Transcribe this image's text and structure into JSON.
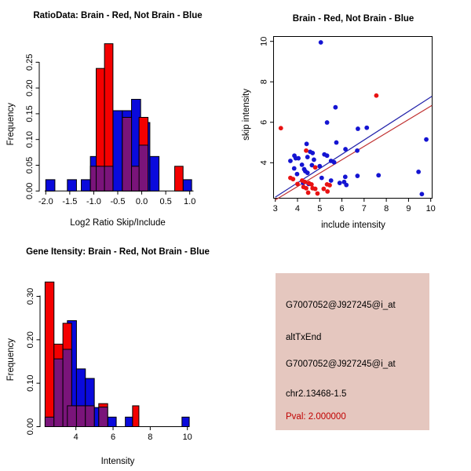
{
  "window_background": "#ffffff",
  "palette": {
    "hist_blue": "#0A0ADC",
    "hist_red": "#F40000",
    "hist_overlap": "#7A147A",
    "bar_border": "#000000",
    "point_blue": "#1414D2",
    "point_red": "#E81212",
    "line_blue": "#2222AA",
    "line_red": "#C03030",
    "axis_color": "#000000",
    "info_bg": "#E5C7BF",
    "info_text": "#000000",
    "pval_text": "#C00000"
  },
  "chart_data": [
    {
      "type": "bar",
      "variant": "overlaid-histogram",
      "title": "RatioData: Brain - Red, Not Brain - Blue",
      "xlabel": "Log2 Ratio Skip/Include",
      "ylabel": "Frequency",
      "legend_note": "Brain = red, Not Brain = blue, overlap = purple",
      "xlim": [
        -2.15,
        1.1
      ],
      "ylim": [
        0,
        0.29
      ],
      "grid": false,
      "xticks": [
        -2.0,
        -1.5,
        -1.0,
        -0.5,
        0.0,
        0.5,
        1.0
      ],
      "xtick_labels": [
        "-2.0",
        "-1.5",
        "-1.0",
        "-0.5",
        "0.0",
        "0.5",
        "1.0"
      ],
      "yticks": [
        0.0,
        0.05,
        0.1,
        0.15,
        0.2,
        0.25
      ],
      "ytick_labels": [
        "0.00",
        "0.05",
        "0.10",
        "0.15",
        "0.20",
        "0.25"
      ],
      "bars": [
        {
          "x0": -2.0,
          "x1": -1.81,
          "h": 0.022,
          "c": "blue"
        },
        {
          "x0": -1.55,
          "x1": -1.36,
          "h": 0.022,
          "c": "blue"
        },
        {
          "x0": -1.26,
          "x1": -1.07,
          "h": 0.022,
          "c": "blue"
        },
        {
          "x0": -1.07,
          "x1": -0.88,
          "h": 0.067,
          "c": "blue"
        },
        {
          "x0": -0.6,
          "x1": -0.404,
          "h": 0.156,
          "c": "blue"
        },
        {
          "x0": -0.404,
          "x1": -0.213,
          "h": 0.156,
          "c": "blue"
        },
        {
          "x0": -0.213,
          "x1": -0.023,
          "h": 0.178,
          "c": "blue"
        },
        {
          "x0": -0.023,
          "x1": 0.169,
          "h": 0.133,
          "c": "blue"
        },
        {
          "x0": 0.169,
          "x1": 0.36,
          "h": 0.067,
          "c": "blue"
        },
        {
          "x0": 0.861,
          "x1": 1.04,
          "h": 0.022,
          "c": "blue"
        },
        {
          "x0": -0.949,
          "x1": -0.776,
          "h": 0.238,
          "c": "red"
        },
        {
          "x0": -0.776,
          "x1": -0.6,
          "h": 0.286,
          "c": "red"
        },
        {
          "x0": -0.056,
          "x1": 0.131,
          "h": 0.143,
          "c": "red"
        },
        {
          "x0": 0.687,
          "x1": 0.861,
          "h": 0.048,
          "c": "red"
        },
        {
          "x0": -1.07,
          "x1": -0.88,
          "h": 0.048,
          "c": "overlap"
        },
        {
          "x0": -0.949,
          "x1": -0.776,
          "h": 0.048,
          "c": "overlap"
        },
        {
          "x0": -0.776,
          "x1": -0.6,
          "h": 0.048,
          "c": "overlap"
        },
        {
          "x0": -0.404,
          "x1": -0.213,
          "h": 0.143,
          "c": "overlap"
        },
        {
          "x0": -0.213,
          "x1": -0.023,
          "h": 0.048,
          "c": "overlap"
        },
        {
          "x0": -0.056,
          "x1": 0.131,
          "h": 0.089,
          "c": "overlap"
        }
      ]
    },
    {
      "type": "scatter",
      "title": "Brain - Red, Not Brain - Blue",
      "xlabel": "include intensity",
      "ylabel": "skip intensity",
      "xlim": [
        2.92,
        10.07
      ],
      "ylim": [
        2.25,
        10.22
      ],
      "grid": false,
      "box": true,
      "xticks": [
        3,
        4,
        5,
        6,
        7,
        8,
        9,
        10
      ],
      "xtick_labels": [
        "3",
        "4",
        "5",
        "6",
        "7",
        "8",
        "9",
        "10"
      ],
      "yticks": [
        4,
        6,
        8,
        10
      ],
      "ytick_labels": [
        "4",
        "6",
        "8",
        "10"
      ],
      "series": [
        {
          "name": "Not Brain",
          "color": "blue",
          "points": [
            [
              5.05,
              9.95
            ],
            [
              5.71,
              6.74
            ],
            [
              5.33,
              5.99
            ],
            [
              6.72,
              5.68
            ],
            [
              7.12,
              5.73
            ],
            [
              9.8,
              5.15
            ],
            [
              5.75,
              5.0
            ],
            [
              4.41,
              4.93
            ],
            [
              4.57,
              4.54
            ],
            [
              4.68,
              4.48
            ],
            [
              6.16,
              4.67
            ],
            [
              6.69,
              4.6
            ],
            [
              3.86,
              4.35
            ],
            [
              3.92,
              4.22
            ],
            [
              4.45,
              4.28
            ],
            [
              4.74,
              4.15
            ],
            [
              5.21,
              4.41
            ],
            [
              5.33,
              4.35
            ],
            [
              4.04,
              4.22
            ],
            [
              5.51,
              4.09
            ],
            [
              5.65,
              4.02
            ],
            [
              3.68,
              4.09
            ],
            [
              4.2,
              3.9
            ],
            [
              4.65,
              3.88
            ],
            [
              5.0,
              3.83
            ],
            [
              3.85,
              3.72
            ],
            [
              4.3,
              3.68
            ],
            [
              4.35,
              3.58
            ],
            [
              3.98,
              3.44
            ],
            [
              4.45,
              3.5
            ],
            [
              9.45,
              3.55
            ],
            [
              5.09,
              3.25
            ],
            [
              5.51,
              3.12
            ],
            [
              6.15,
              3.3
            ],
            [
              6.7,
              3.35
            ],
            [
              7.65,
              3.38
            ],
            [
              4.25,
              3.0
            ],
            [
              4.5,
              2.95
            ],
            [
              6.1,
              3.05
            ],
            [
              6.2,
              2.9
            ],
            [
              5.9,
              3.0
            ],
            [
              9.6,
              2.45
            ]
          ]
        },
        {
          "name": "Brain",
          "color": "red",
          "points": [
            [
              3.25,
              5.71
            ],
            [
              7.55,
              7.32
            ],
            [
              4.39,
              4.6
            ],
            [
              4.8,
              3.77
            ],
            [
              3.68,
              3.25
            ],
            [
              3.8,
              3.19
            ],
            [
              4.21,
              3.12
            ],
            [
              4.33,
              3.05
            ],
            [
              5.33,
              2.93
            ],
            [
              5.45,
              2.89
            ],
            [
              4.51,
              2.99
            ],
            [
              4.63,
              2.93
            ],
            [
              4.0,
              2.95
            ],
            [
              4.27,
              2.8
            ],
            [
              4.39,
              2.74
            ],
            [
              4.68,
              2.74
            ],
            [
              4.8,
              2.71
            ],
            [
              5.18,
              2.71
            ],
            [
              4.9,
              2.48
            ],
            [
              5.35,
              2.58
            ],
            [
              4.48,
              2.52
            ]
          ]
        }
      ],
      "lines": [
        {
          "color": "blue",
          "x1": 3.0,
          "y1": 2.3,
          "x2": 10.05,
          "y2": 7.28
        },
        {
          "color": "red",
          "x1": 3.0,
          "y1": 2.16,
          "x2": 10.05,
          "y2": 6.83
        }
      ]
    },
    {
      "type": "bar",
      "variant": "overlaid-histogram",
      "title": "Gene Itensity: Brain - Red, Not Brain - Blue",
      "xlabel": "Intensity",
      "ylabel": "Frequency",
      "legend_note": "Brain = red, Not Brain = blue, overlap = purple",
      "xlim": [
        2.2,
        10.3
      ],
      "ylim": [
        0,
        0.34
      ],
      "grid": false,
      "xticks": [
        4,
        6,
        8,
        10
      ],
      "xtick_labels": [
        "4",
        "6",
        "8",
        "10"
      ],
      "yticks": [
        0.0,
        0.1,
        0.2,
        0.3
      ],
      "ytick_labels": [
        "0.00",
        "0.10",
        "0.20",
        "0.30"
      ],
      "bars": [
        {
          "x0": 3.54,
          "x1": 4.03,
          "h": 0.244,
          "c": "blue"
        },
        {
          "x0": 4.03,
          "x1": 4.51,
          "h": 0.133,
          "c": "blue"
        },
        {
          "x0": 4.51,
          "x1": 4.99,
          "h": 0.111,
          "c": "blue"
        },
        {
          "x0": 4.99,
          "x1": 5.45,
          "h": 0.044,
          "c": "blue"
        },
        {
          "x0": 5.71,
          "x1": 6.17,
          "h": 0.022,
          "c": "blue"
        },
        {
          "x0": 6.66,
          "x1": 7.05,
          "h": 0.022,
          "c": "blue"
        },
        {
          "x0": 9.71,
          "x1": 10.1,
          "h": 0.022,
          "c": "blue"
        },
        {
          "x0": 2.34,
          "x1": 2.82,
          "h": 0.333,
          "c": "red"
        },
        {
          "x0": 2.82,
          "x1": 3.3,
          "h": 0.19,
          "c": "red"
        },
        {
          "x0": 3.3,
          "x1": 3.77,
          "h": 0.238,
          "c": "red"
        },
        {
          "x0": 5.23,
          "x1": 5.71,
          "h": 0.053,
          "c": "red"
        },
        {
          "x0": 7.05,
          "x1": 7.39,
          "h": 0.048,
          "c": "red"
        },
        {
          "x0": 2.34,
          "x1": 2.82,
          "h": 0.022,
          "c": "overlap"
        },
        {
          "x0": 2.82,
          "x1": 3.3,
          "h": 0.156,
          "c": "overlap"
        },
        {
          "x0": 3.3,
          "x1": 3.77,
          "h": 0.178,
          "c": "overlap"
        },
        {
          "x0": 3.54,
          "x1": 4.03,
          "h": 0.048,
          "c": "overlap"
        },
        {
          "x0": 4.03,
          "x1": 4.51,
          "h": 0.048,
          "c": "overlap"
        },
        {
          "x0": 4.51,
          "x1": 4.99,
          "h": 0.048,
          "c": "overlap"
        },
        {
          "x0": 5.23,
          "x1": 5.71,
          "h": 0.045,
          "c": "overlap"
        }
      ]
    }
  ],
  "info_panel": {
    "lines": [
      {
        "text": "G7007052@J927245@i_at",
        "style": "color:#000000"
      },
      {
        "text": "altTxEnd",
        "style": "color:#000000"
      },
      {
        "text": "G7007052@J927245@i_at",
        "style": "color:#000000"
      },
      {
        "text": "chr2.13468-1.5",
        "style": "color:#000000"
      },
      {
        "text": "Pval: 2.000000",
        "style": "color:#C00000"
      }
    ]
  }
}
